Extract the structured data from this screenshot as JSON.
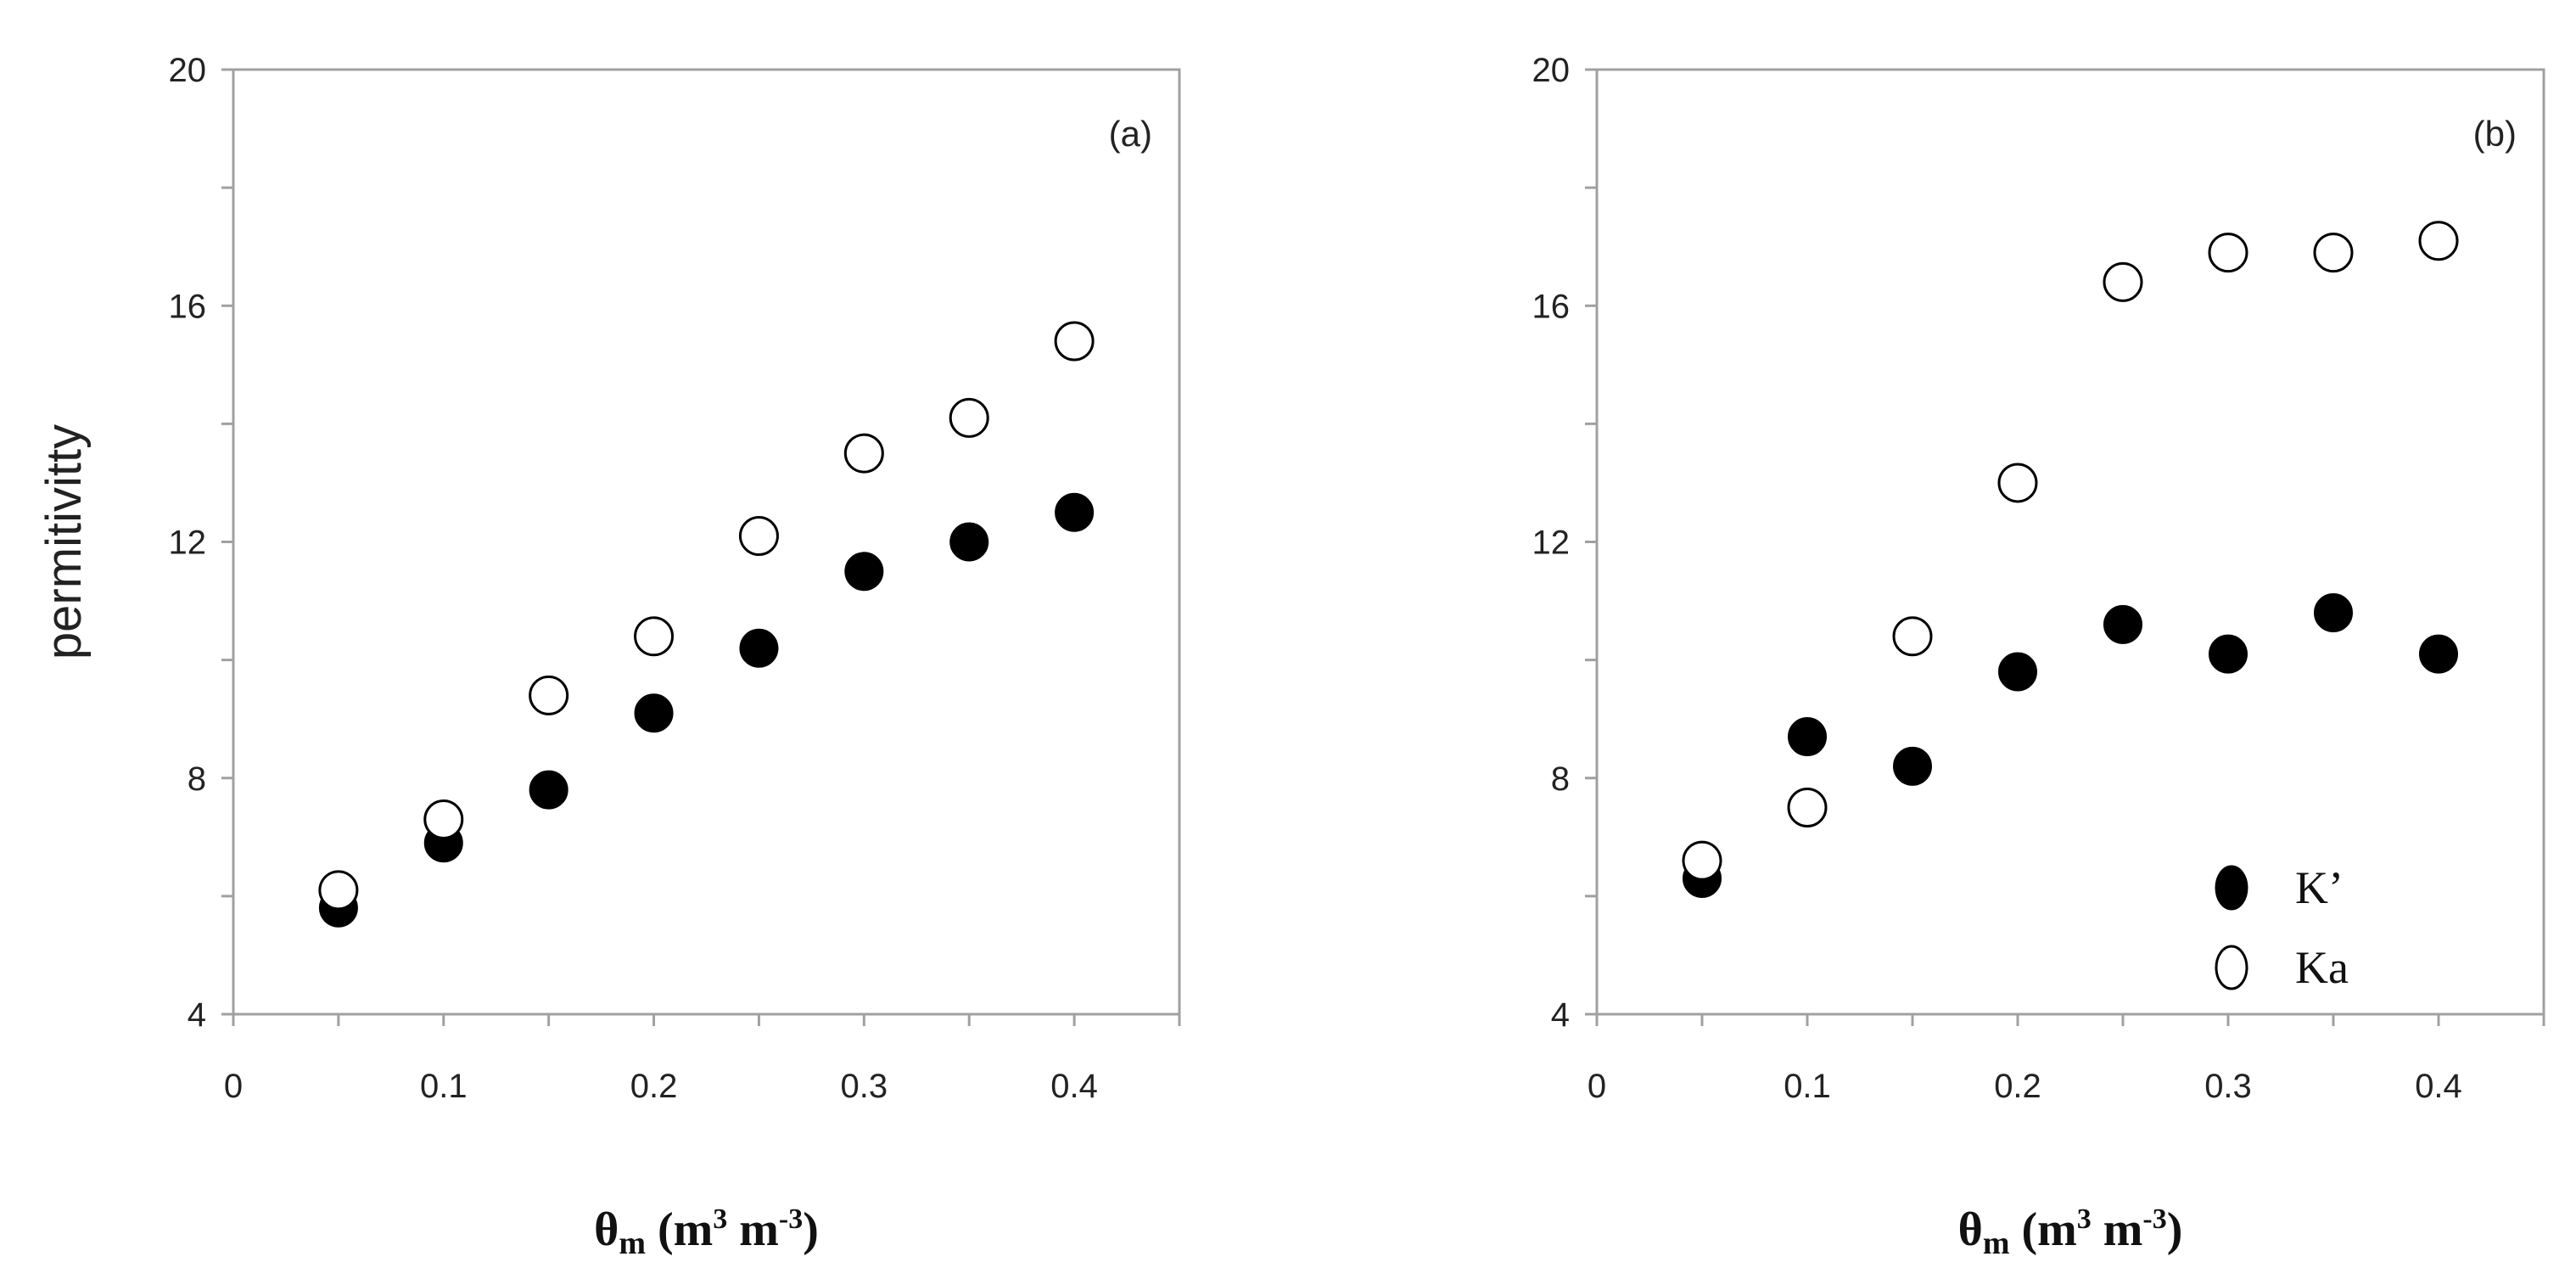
{
  "chart_data": [
    {
      "type": "scatter",
      "panel_label": "(a)",
      "xlabel": {
        "theta": "θ",
        "sub": "m",
        "open": " (m",
        "sup1": "3",
        "mid": " m",
        "sup2": "-3",
        "close": ")"
      },
      "ylabel": "permitivitty",
      "xlim": [
        0,
        0.45
      ],
      "ylim": [
        4,
        20
      ],
      "xticks": [
        0,
        0.1,
        0.2,
        0.3,
        0.4
      ],
      "xtick_labels": [
        "0",
        "0.1",
        "0.2",
        "0.3",
        "0.4"
      ],
      "yticks": [
        4,
        8,
        12,
        16,
        20
      ],
      "ytick_labels": [
        "4",
        "8",
        "12",
        "16",
        "20"
      ],
      "grid": false,
      "series": [
        {
          "marker": "filled",
          "x": [
            0.05,
            0.1,
            0.15,
            0.2,
            0.25,
            0.3,
            0.35,
            0.4
          ],
          "y": [
            5.8,
            6.9,
            7.8,
            9.1,
            10.2,
            11.5,
            12.0,
            12.5
          ]
        },
        {
          "marker": "open",
          "x": [
            0.05,
            0.1,
            0.15,
            0.2,
            0.25,
            0.3,
            0.35,
            0.4
          ],
          "y": [
            6.1,
            7.3,
            9.4,
            10.4,
            12.1,
            13.5,
            14.1,
            15.4
          ]
        }
      ]
    },
    {
      "type": "scatter",
      "panel_label": "(b)",
      "xlabel": {
        "theta": "θ",
        "sub": "m",
        "open": " (m",
        "sup1": "3",
        "mid": " m",
        "sup2": "-3",
        "close": ")"
      },
      "ylabel": "",
      "xlim": [
        0,
        0.45
      ],
      "ylim": [
        4,
        20
      ],
      "xticks": [
        0,
        0.1,
        0.2,
        0.3,
        0.4
      ],
      "xtick_labels": [
        "0",
        "0.1",
        "0.2",
        "0.3",
        "0.4"
      ],
      "yticks": [
        4,
        8,
        12,
        16,
        20
      ],
      "ytick_labels": [
        "4",
        "8",
        "12",
        "16",
        "20"
      ],
      "grid": false,
      "legend_placement": "bottom-right",
      "series": [
        {
          "name": "K’",
          "marker": "filled",
          "x": [
            0.05,
            0.1,
            0.15,
            0.2,
            0.25,
            0.3,
            0.35,
            0.4
          ],
          "y": [
            6.3,
            8.7,
            8.2,
            9.8,
            10.6,
            10.1,
            10.8,
            10.1
          ]
        },
        {
          "name": "Ka",
          "marker": "open",
          "x": [
            0.05,
            0.1,
            0.15,
            0.2,
            0.25,
            0.3,
            0.35,
            0.4
          ],
          "y": [
            6.6,
            7.5,
            10.4,
            13.0,
            16.4,
            16.9,
            16.9,
            17.1
          ]
        }
      ]
    }
  ],
  "colors": {
    "marker": "#000000",
    "axis": "#a0a0a0",
    "text": "#222222"
  }
}
